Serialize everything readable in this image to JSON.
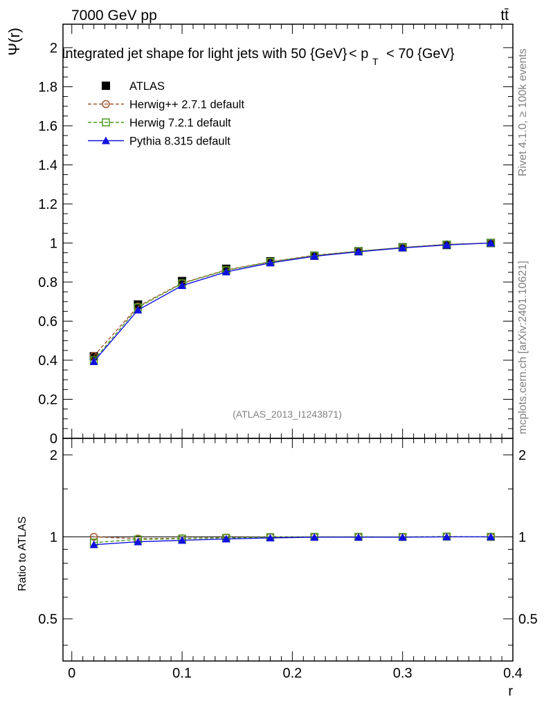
{
  "header": {
    "energy_label": "7000 GeV pp",
    "process_label": "tt̄",
    "analysis_id": "(ATLAS_2013_I1243871)",
    "side_rivet": "Rivet 4.1.0, ≥ 100k events",
    "side_mcplots": "mcplots.cern.ch [arXiv:2401.10621]"
  },
  "chart_data": [
    {
      "type": "line",
      "panel": "main",
      "title": "Integrated jet shape for light jets with 50 {GeV} < p_T < 70 {GeV}",
      "title_parts": {
        "text": "Integrated jet shape for light jets with 50 {GeV}",
        "lt": "< p",
        "sub": "T",
        "rest": "< 70 {GeV}"
      },
      "ylabel": "Ψ(r)",
      "xlim": [
        -0.008,
        0.4
      ],
      "ylim": [
        0,
        2.12
      ],
      "yticks": [
        0,
        0.2,
        0.4,
        0.6,
        0.8,
        1,
        1.2,
        1.4,
        1.6,
        1.8,
        2
      ],
      "ytick_labels": [
        "0",
        "0.2",
        "0.4",
        "0.6",
        "0.8",
        "1",
        "1.2",
        "1.4",
        "1.6",
        "1.8",
        "2"
      ],
      "x": [
        0.02,
        0.06,
        0.1,
        0.14,
        0.18,
        0.22,
        0.26,
        0.3,
        0.34,
        0.38
      ],
      "series": [
        {
          "name": "ATLAS",
          "color": "#000000",
          "marker": "square-filled",
          "line": "none",
          "values": [
            0.42,
            0.685,
            0.805,
            0.868,
            0.906,
            0.935,
            0.958,
            0.978,
            0.99,
            1.0
          ]
        },
        {
          "name": "Herwig++ 2.7.1 default",
          "color": "#a0522d",
          "marker": "circle-open",
          "line": "dashed",
          "values": [
            0.422,
            0.675,
            0.795,
            0.862,
            0.904,
            0.937,
            0.958,
            0.977,
            0.993,
            1.0
          ]
        },
        {
          "name": "Herwig 7.2.1 default",
          "color": "#4a9a1e",
          "marker": "square-open",
          "line": "dashed",
          "values": [
            0.4,
            0.67,
            0.793,
            0.86,
            0.903,
            0.935,
            0.958,
            0.977,
            0.992,
            1.0
          ]
        },
        {
          "name": "Pythia 8.315 default",
          "color": "#1010e0",
          "marker": "triangle-filled",
          "line": "solid",
          "values": [
            0.393,
            0.657,
            0.782,
            0.852,
            0.898,
            0.932,
            0.955,
            0.975,
            0.99,
            1.0
          ]
        }
      ],
      "legend_position": "top-left"
    },
    {
      "type": "line",
      "panel": "ratio",
      "ylabel": "Ratio to ATLAS",
      "xlabel": "r",
      "xlim": [
        -0.008,
        0.4
      ],
      "ylim": [
        0.35,
        2.3
      ],
      "yscale": "log",
      "yticks": [
        0.5,
        1,
        2
      ],
      "ytick_labels": [
        "0.5",
        "1",
        "2"
      ],
      "xticks": [
        0,
        0.1,
        0.2,
        0.3,
        0.4
      ],
      "xtick_labels": [
        "0",
        "0.1",
        "0.2",
        "0.3",
        "0.4"
      ],
      "x": [
        0.02,
        0.06,
        0.1,
        0.14,
        0.18,
        0.22,
        0.26,
        0.3,
        0.34,
        0.38
      ],
      "series": [
        {
          "name": "Herwig++ 2.7.1 default",
          "color": "#a0522d",
          "marker": "circle-open",
          "line": "dashed",
          "values": [
            1.0,
            0.985,
            0.988,
            0.993,
            0.998,
            1.0,
            1.0,
            0.999,
            1.003,
            1.0
          ]
        },
        {
          "name": "Herwig 7.2.1 default",
          "color": "#4a9a1e",
          "marker": "square-open",
          "line": "dashed",
          "values": [
            0.953,
            0.978,
            0.985,
            0.991,
            0.997,
            1.0,
            1.0,
            0.999,
            1.002,
            1.0
          ]
        },
        {
          "name": "Pythia 8.315 default",
          "color": "#1010e0",
          "marker": "triangle-filled",
          "line": "solid",
          "values": [
            0.936,
            0.959,
            0.971,
            0.982,
            0.991,
            0.997,
            0.997,
            0.997,
            1.0,
            1.0
          ]
        }
      ]
    }
  ]
}
